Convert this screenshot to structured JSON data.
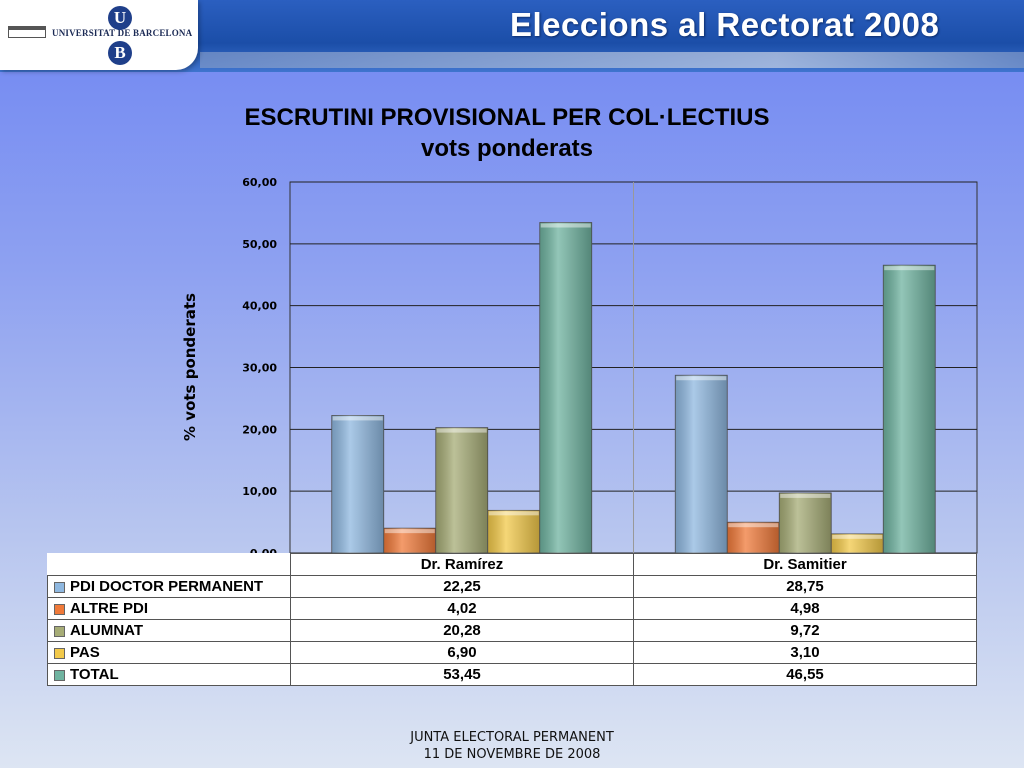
{
  "header": {
    "logo_text": "UNIVERSITAT DE BARCELONA",
    "logo_top_letter": "U",
    "logo_bottom_letter": "B",
    "title": "Eleccions al Rectorat 2008"
  },
  "chart_data": {
    "type": "bar",
    "title": "ESCRUTINI PROVISIONAL PER COL·LECTIUS",
    "subtitle": "vots ponderats",
    "ylabel": "% vots ponderats",
    "xlabel": "",
    "ylim": [
      0,
      60
    ],
    "yticks": [
      "0,00",
      "10,00",
      "20,00",
      "30,00",
      "40,00",
      "50,00",
      "60,00"
    ],
    "grid": true,
    "legend": "table",
    "categories": [
      "Dr. Ramírez",
      "Dr. Samitier"
    ],
    "series": [
      {
        "name": "PDI DOCTOR PERMANENT",
        "values": [
          22.25,
          28.75
        ],
        "labels": [
          "22,25",
          "28,75"
        ],
        "color": "#8fb8e0"
      },
      {
        "name": "ALTRE PDI",
        "values": [
          4.02,
          4.98
        ],
        "labels": [
          "4,02",
          "4,98"
        ],
        "color": "#f07a3a"
      },
      {
        "name": "ALUMNAT",
        "values": [
          20.28,
          9.72
        ],
        "labels": [
          "20,28",
          "9,72"
        ],
        "color": "#a6ac76"
      },
      {
        "name": "PAS",
        "values": [
          6.9,
          3.1
        ],
        "labels": [
          "6,90",
          "3,10"
        ],
        "color": "#f2c94a"
      },
      {
        "name": "TOTAL",
        "values": [
          53.45,
          46.55
        ],
        "labels": [
          "53,45",
          "46,55"
        ],
        "color": "#6fb3a0"
      }
    ]
  },
  "footer": {
    "line1": "JUNTA ELECTORAL PERMANENT",
    "line2": "11 DE NOVEMBRE DE 2008"
  }
}
